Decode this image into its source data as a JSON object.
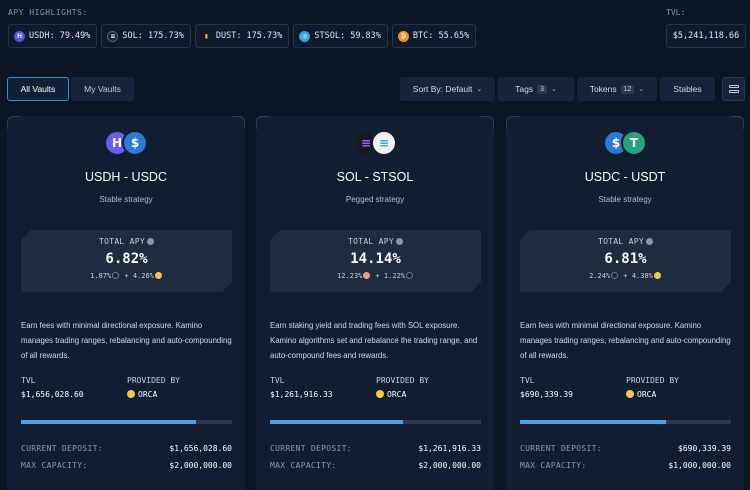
{
  "highlights": {
    "label": "APY HIGHLIGHTS:",
    "items": [
      {
        "text": "USDH: 79.49%",
        "icon": "usdh-icon",
        "color": "#5b4ee8",
        "glyph": "H"
      },
      {
        "text": "SOL: 175.73%",
        "icon": "sol-icon",
        "color": "#1e2430",
        "glyph": "≡"
      },
      {
        "text": "DUST: 175.73%",
        "icon": "dust-icon",
        "color": "#d8b43a",
        "glyph": "▮"
      },
      {
        "text": "STSOL: 59.83%",
        "icon": "stsol-icon",
        "color": "#3aa0d8",
        "glyph": "◎"
      },
      {
        "text": "BTC: 55.65%",
        "icon": "btc-icon",
        "color": "#f2921b",
        "glyph": "₿"
      }
    ]
  },
  "tvl": {
    "label": "TVL:",
    "value": "$5,241,118.66"
  },
  "tabs": {
    "all": "All Vaults",
    "my": "My Vaults"
  },
  "filters": {
    "sort": "Sort By: Default",
    "tags": "Tags",
    "tags_count": "3",
    "tokens": "Tokens",
    "tokens_count": "12",
    "stables": "Stables"
  },
  "vaults": [
    {
      "pair": "USDH - USDC",
      "strategy": "Stable strategy",
      "apy_title": "TOTAL APY",
      "apy": "6.82%",
      "apy_part1": "1.87%",
      "apy_plus": "+ 4.26%",
      "description": "Earn fees with minimal directional exposure. Kamino manages trading ranges, rebalancing and auto-compounding of all rewards.",
      "tvl_label": "TVL",
      "tvl": "$1,656,028.60",
      "provided_label": "PROVIDED BY",
      "provider": "ORCA",
      "capacity_fill": 0.828,
      "current_deposit_label": "CURRENT DEPOSIT:",
      "current_deposit": "$1,656,028.60",
      "max_capacity_label": "MAX CAPACITY:",
      "max_capacity": "$2,000,000.00",
      "logo1": {
        "glyph": "H",
        "color": "#6a5cf0"
      },
      "logo2": {
        "glyph": "$",
        "color": "#2f78d6"
      }
    },
    {
      "pair": "SOL - STSOL",
      "strategy": "Pegged strategy",
      "apy_title": "TOTAL APY",
      "apy": "14.14%",
      "apy_part1": "12.23%",
      "apy_plus": "+ 1.22%",
      "description": "Earn staking yield and trading fees with SOL exposure. Kamino algorithms set and rebalance the trading range, and auto-compound fees and rewards.",
      "tvl_label": "TVL",
      "tvl": "$1,261,916.33",
      "provided_label": "PROVIDED BY",
      "provider": "ORCA",
      "capacity_fill": 0.631,
      "current_deposit_label": "CURRENT DEPOSIT:",
      "current_deposit": "$1,261,916.33",
      "max_capacity_label": "MAX CAPACITY:",
      "max_capacity": "$2,000,000.00",
      "logo1": {
        "glyph": "≡",
        "color": "#141a24"
      },
      "logo2": {
        "glyph": "≡",
        "color": "#eef2f6"
      }
    },
    {
      "pair": "USDC - USDT",
      "strategy": "Stable strategy",
      "apy_title": "TOTAL APY",
      "apy": "6.81%",
      "apy_part1": "2.24%",
      "apy_plus": "+ 4.38%",
      "description": "Earn fees with minimal directional exposure. Kamino manages trading ranges, rebalancing and auto-compounding of all rewards.",
      "tvl_label": "TVL",
      "tvl": "$690,339.39",
      "provided_label": "PROVIDED BY",
      "provider": "ORCA",
      "capacity_fill": 0.69,
      "current_deposit_label": "CURRENT DEPOSIT:",
      "current_deposit": "$690,339.39",
      "max_capacity_label": "MAX CAPACITY:",
      "max_capacity": "$1,000,000.00",
      "logo1": {
        "glyph": "$",
        "color": "#2f78d6"
      },
      "logo2": {
        "glyph": "T",
        "color": "#26a17b"
      }
    }
  ]
}
